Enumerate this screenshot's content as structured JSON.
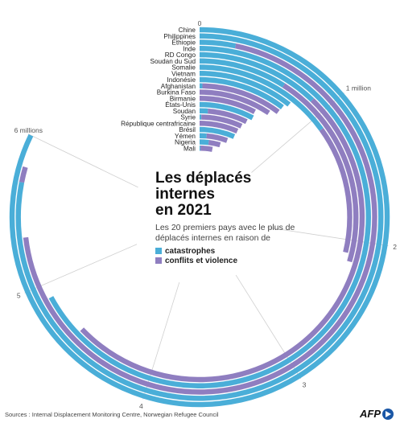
{
  "chart_data": {
    "type": "radial-bar",
    "title": "Les déplacés\ninternes\nen 2021",
    "subtitle": "Les 20 premiers pays avec le plus de déplacés internes en raison de",
    "legend": [
      {
        "name": "catastrophes",
        "color": "#4aaed8"
      },
      {
        "name": "conflits et violence",
        "color": "#8f7ec0"
      }
    ],
    "axis_labels": [
      {
        "value": 0,
        "label": "0"
      },
      {
        "value": 1000000,
        "label": "1 million"
      },
      {
        "value": 2000000,
        "label": "2"
      },
      {
        "value": 3000000,
        "label": "3"
      },
      {
        "value": 4000000,
        "label": "4"
      },
      {
        "value": 5000000,
        "label": "5"
      },
      {
        "value": 6000000,
        "label": "6 millions"
      }
    ],
    "scale_max": 7300000,
    "countries": [
      {
        "name": "Chine",
        "catastrophes": 6000000,
        "conflits": 0
      },
      {
        "name": "Philippines",
        "catastrophes": 5700000,
        "conflits": 100000
      },
      {
        "name": "Éthiopie",
        "catastrophes": 240000,
        "conflits": 5100000
      },
      {
        "name": "Inde",
        "catastrophes": 4900000,
        "conflits": 0
      },
      {
        "name": "RD Congo",
        "catastrophes": 890000,
        "conflits": 3700000
      },
      {
        "name": "Soudan du Sud",
        "catastrophes": 660000,
        "conflits": 1500000
      },
      {
        "name": "Somalie",
        "catastrophes": 1100000,
        "conflits": 1000000
      },
      {
        "name": "Vietnam",
        "catastrophes": 780000,
        "conflits": 0
      },
      {
        "name": "Indonésie",
        "catastrophes": 750000,
        "conflits": 0
      },
      {
        "name": "Afghanistan",
        "catastrophes": 25000,
        "conflits": 720000
      },
      {
        "name": "Burkina Faso",
        "catastrophes": 0,
        "conflits": 680000
      },
      {
        "name": "Birmanie",
        "catastrophes": 0,
        "conflits": 560000
      },
      {
        "name": "États-Unis",
        "catastrophes": 570000,
        "conflits": 0
      },
      {
        "name": "Soudan",
        "catastrophes": 90000,
        "conflits": 440000
      },
      {
        "name": "Syrie",
        "catastrophes": 20000,
        "conflits": 480000
      },
      {
        "name": "République centrafricaine",
        "catastrophes": 0,
        "conflits": 480000
      },
      {
        "name": "Brésil",
        "catastrophes": 470000,
        "conflits": 0
      },
      {
        "name": "Yémen",
        "catastrophes": 100000,
        "conflits": 300000
      },
      {
        "name": "Nigeria",
        "catastrophes": 140000,
        "conflits": 180000
      },
      {
        "name": "Mali",
        "catastrophes": 15000,
        "conflits": 200000
      }
    ]
  },
  "footer": {
    "source": "Sources : Internal Displacement Monitoring Centre, Norwegian Refugee Council",
    "logo_text": "AFP"
  }
}
